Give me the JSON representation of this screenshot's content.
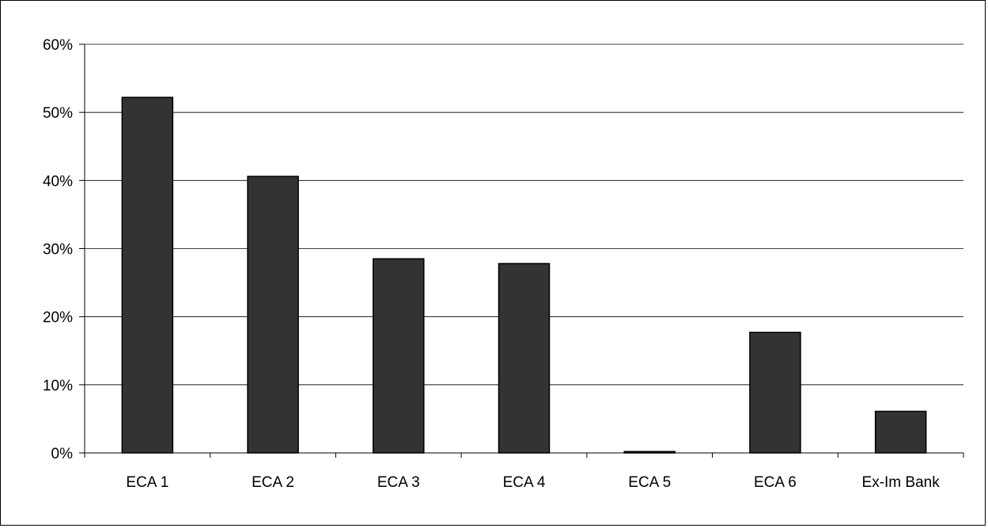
{
  "chart_data": {
    "type": "bar",
    "title": "",
    "xlabel": "",
    "ylabel": "",
    "categories": [
      "ECA 1",
      "ECA 2",
      "ECA 3",
      "ECA 4",
      "ECA 5",
      "ECA 6",
      "Ex-Im Bank"
    ],
    "values": [
      52.2,
      40.6,
      28.5,
      27.8,
      0.2,
      17.7,
      6.1
    ],
    "value_unit": "%",
    "ylim": [
      0,
      60
    ],
    "yticks": [
      0,
      10,
      20,
      30,
      40,
      50,
      60
    ],
    "ytick_labels": [
      "0%",
      "10%",
      "20%",
      "30%",
      "40%",
      "50%",
      "60%"
    ],
    "grid": "horizontal",
    "legend": "none",
    "colors": {
      "bar_fill": "#333333",
      "bar_stroke": "#000000",
      "gridline": "#000000"
    }
  }
}
